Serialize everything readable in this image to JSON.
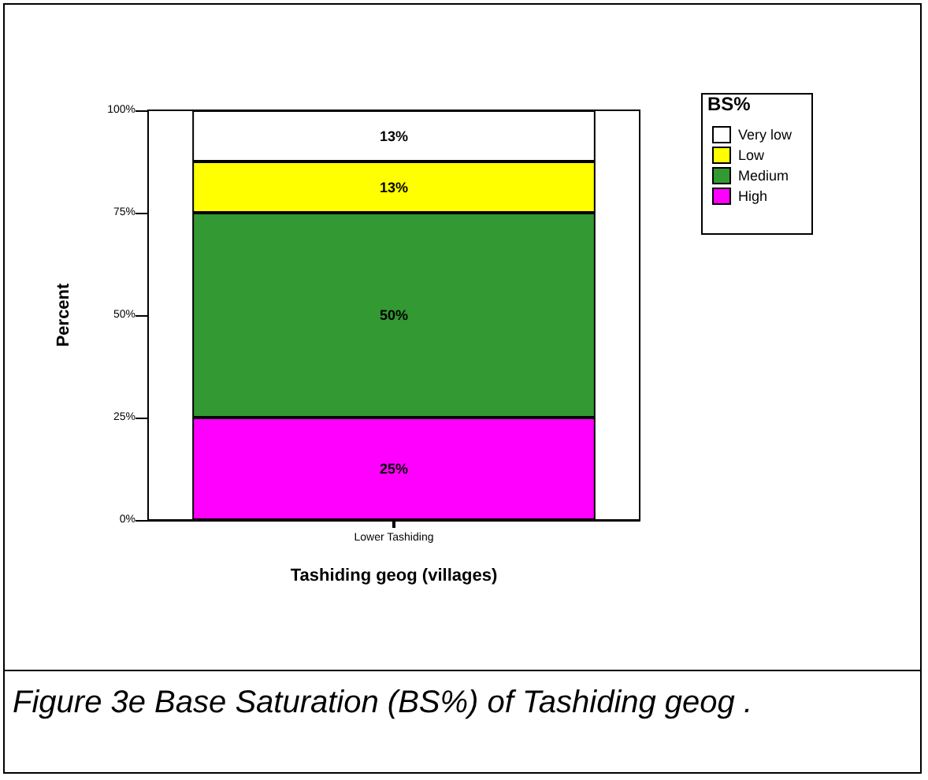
{
  "chart_data": {
    "type": "bar",
    "stacked": true,
    "xlabel": "Tashiding geog (villages)",
    "ylabel": "Percent",
    "legend_title": "BS%",
    "legend": "top right",
    "categories": [
      "Lower Tashiding"
    ],
    "series": [
      {
        "name": "High",
        "color": "#ff00ff",
        "values": [
          25
        ],
        "value_labels": [
          "25%"
        ]
      },
      {
        "name": "Medium",
        "color": "#339933",
        "values": [
          50
        ],
        "value_labels": [
          "50%"
        ]
      },
      {
        "name": "Low",
        "color": "#ffff00",
        "values": [
          12.5
        ],
        "value_labels": [
          "13%"
        ]
      },
      {
        "name": "Very low",
        "color": "#ffffff",
        "values": [
          12.5
        ],
        "value_labels": [
          "13%"
        ]
      }
    ],
    "ylim": [
      0,
      100
    ],
    "yticks": [
      {
        "value": 0,
        "label": "0%"
      },
      {
        "value": 25,
        "label": "25%"
      },
      {
        "value": 50,
        "label": "50%"
      },
      {
        "value": 75,
        "label": "75%"
      },
      {
        "value": 100,
        "label": "100%"
      }
    ],
    "grid": false,
    "annotations": [
      "Figure 3e  Base Saturation (BS%) of Tashiding geog ."
    ]
  }
}
